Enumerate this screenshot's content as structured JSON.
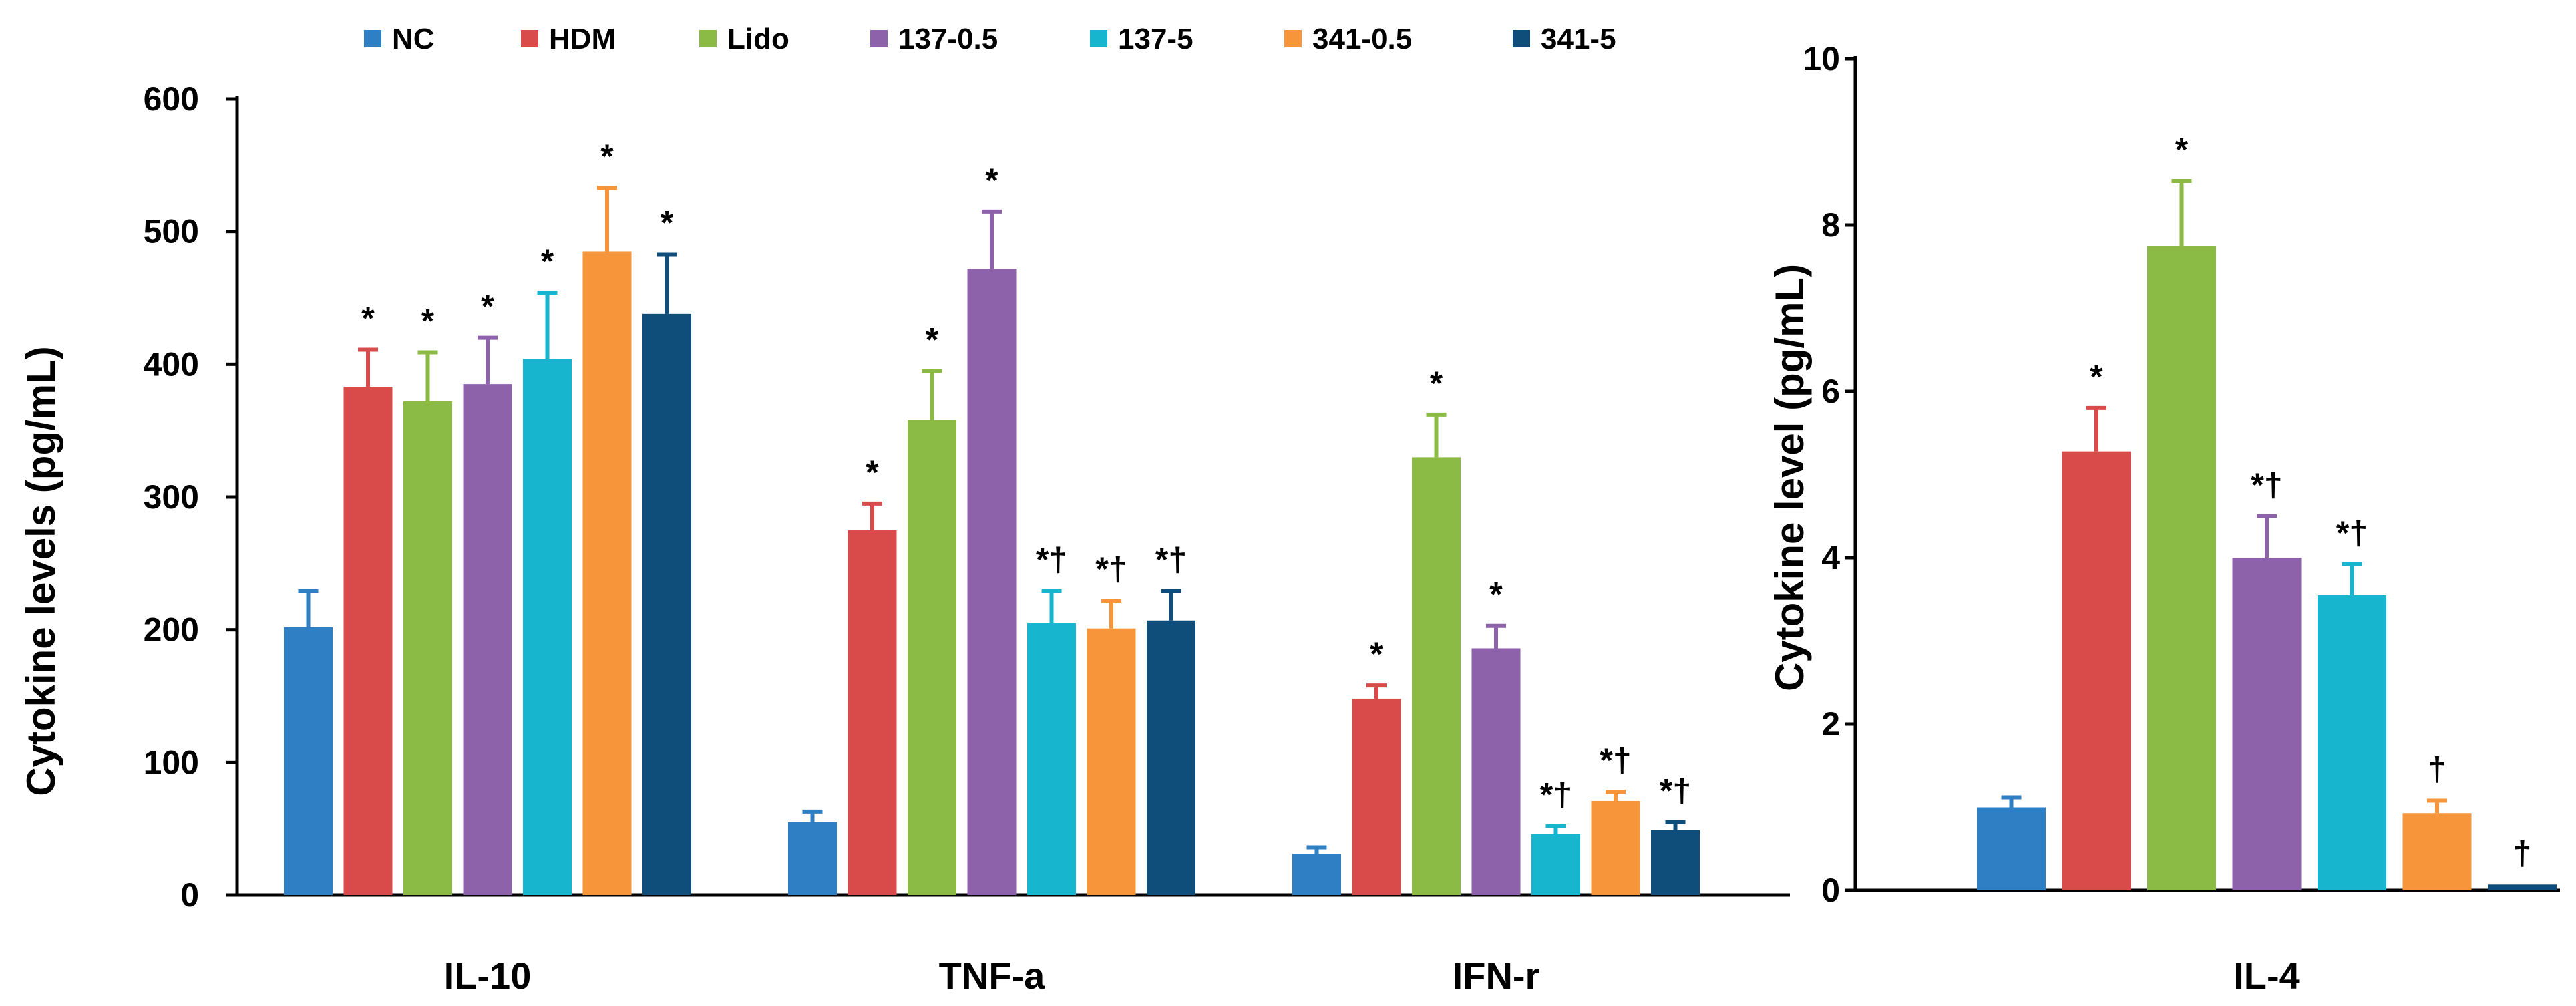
{
  "colors": {
    "NC": "#2e7fc3",
    "HDM": "#d94a4a",
    "Lido": "#8cbb45",
    "137-0.5": "#8d62aa",
    "137-5": "#18b5cf",
    "341-0.5": "#f7953a",
    "341-5": "#0f4d7a"
  },
  "legend": [
    "NC",
    "HDM",
    "Lido",
    "137-0.5",
    "137-5",
    "341-0.5",
    "341-5"
  ],
  "chart_data": [
    {
      "type": "bar",
      "title": "",
      "xlabel": "",
      "ylabel": "Cytokine levels (pg/mL)",
      "ylim": [
        0,
        600
      ],
      "yticks": [
        "0",
        "100",
        "200",
        "300",
        "400",
        "500",
        "600"
      ],
      "categories": [
        "IL-10",
        "TNF-a",
        "IFN-r"
      ],
      "series": [
        {
          "name": "NC",
          "values": [
            202,
            55,
            31
          ],
          "errors": [
            27,
            8,
            5
          ],
          "marks": [
            "",
            "",
            ""
          ]
        },
        {
          "name": "HDM",
          "values": [
            383,
            275,
            148
          ],
          "errors": [
            28,
            20,
            10
          ],
          "marks": [
            "*",
            "*",
            "*"
          ]
        },
        {
          "name": "Lido",
          "values": [
            372,
            358,
            330
          ],
          "errors": [
            37,
            37,
            32
          ],
          "marks": [
            "*",
            "*",
            "*"
          ]
        },
        {
          "name": "137-0.5",
          "values": [
            385,
            472,
            186
          ],
          "errors": [
            35,
            43,
            17
          ],
          "marks": [
            "*",
            "*",
            "*"
          ]
        },
        {
          "name": "137-5",
          "values": [
            404,
            205,
            46
          ],
          "errors": [
            50,
            24,
            6
          ],
          "marks": [
            "*",
            "*†",
            "*†"
          ]
        },
        {
          "name": "341-0.5",
          "values": [
            485,
            201,
            71
          ],
          "errors": [
            48,
            21,
            7
          ],
          "marks": [
            "*",
            "*†",
            "*†"
          ]
        },
        {
          "name": "341-5",
          "values": [
            438,
            207,
            49
          ],
          "errors": [
            45,
            22,
            6
          ],
          "marks": [
            "*",
            "*†",
            "*†"
          ]
        }
      ]
    },
    {
      "type": "bar",
      "title": "",
      "xlabel": "",
      "ylabel": "Cytokine level (pg/mL)",
      "ylim": [
        0,
        10
      ],
      "yticks": [
        "0",
        "2",
        "4",
        "6",
        "8",
        "10"
      ],
      "categories": [
        "IL-4"
      ],
      "series": [
        {
          "name": "NC",
          "values": [
            1.0
          ],
          "errors": [
            0.12
          ],
          "marks": [
            ""
          ]
        },
        {
          "name": "HDM",
          "values": [
            5.28
          ],
          "errors": [
            0.52
          ],
          "marks": [
            "*"
          ]
        },
        {
          "name": "Lido",
          "values": [
            7.75
          ],
          "errors": [
            0.78
          ],
          "marks": [
            "*"
          ]
        },
        {
          "name": "137-0.5",
          "values": [
            4.0
          ],
          "errors": [
            0.5
          ],
          "marks": [
            "*†"
          ]
        },
        {
          "name": "137-5",
          "values": [
            3.55
          ],
          "errors": [
            0.37
          ],
          "marks": [
            "*†"
          ]
        },
        {
          "name": "341-0.5",
          "values": [
            0.93
          ],
          "errors": [
            0.15
          ],
          "marks": [
            "†"
          ]
        },
        {
          "name": "341-5",
          "values": [
            0.07
          ],
          "errors": [
            0
          ],
          "marks": [
            "†"
          ]
        }
      ]
    }
  ]
}
